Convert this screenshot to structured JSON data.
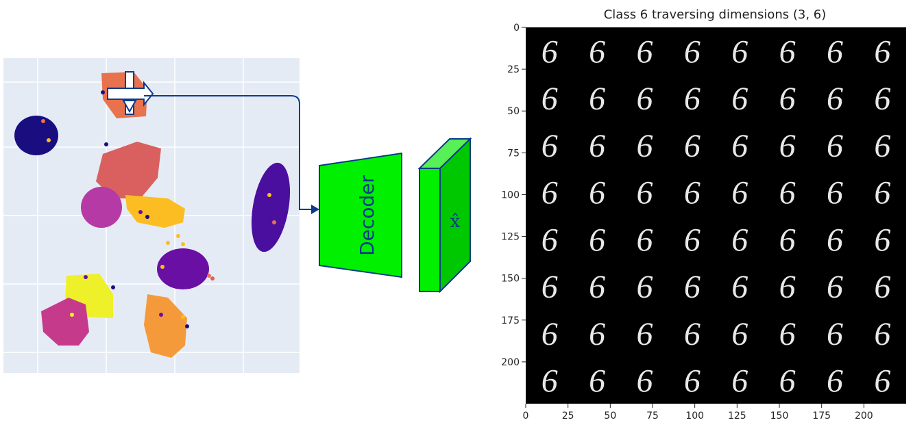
{
  "latent_plot": {
    "clusters": [
      {
        "name": "navy-cluster",
        "color": "#1a0d80"
      },
      {
        "name": "violet-cluster",
        "color": "#4b0fa0"
      },
      {
        "name": "orange-cluster-top",
        "color": "#e8724e"
      },
      {
        "name": "salmon-cluster",
        "color": "#d9605e"
      },
      {
        "name": "magenta-cluster",
        "color": "#b63aa6"
      },
      {
        "name": "yellow-cluster",
        "color": "#fbbd22"
      },
      {
        "name": "purple-cluster",
        "color": "#6a0fa4"
      },
      {
        "name": "bright-yellow-cluster",
        "color": "#eef02a"
      },
      {
        "name": "pink-cluster",
        "color": "#c63a8c"
      },
      {
        "name": "orange-cluster-bottom",
        "color": "#f59a3a"
      }
    ]
  },
  "decoder": {
    "label": "Decoder",
    "color": "#00f000"
  },
  "output": {
    "label": "x̂",
    "color": "#00f000"
  },
  "traversal": {
    "title": "Class 6 traversing dimensions (3, 6)",
    "digit": "6",
    "rows": 8,
    "cols": 8,
    "x_ticks": [
      "0",
      "25",
      "50",
      "75",
      "100",
      "125",
      "150",
      "175",
      "200"
    ],
    "y_ticks": [
      "0",
      "25",
      "50",
      "75",
      "100",
      "125",
      "150",
      "175",
      "200"
    ]
  }
}
